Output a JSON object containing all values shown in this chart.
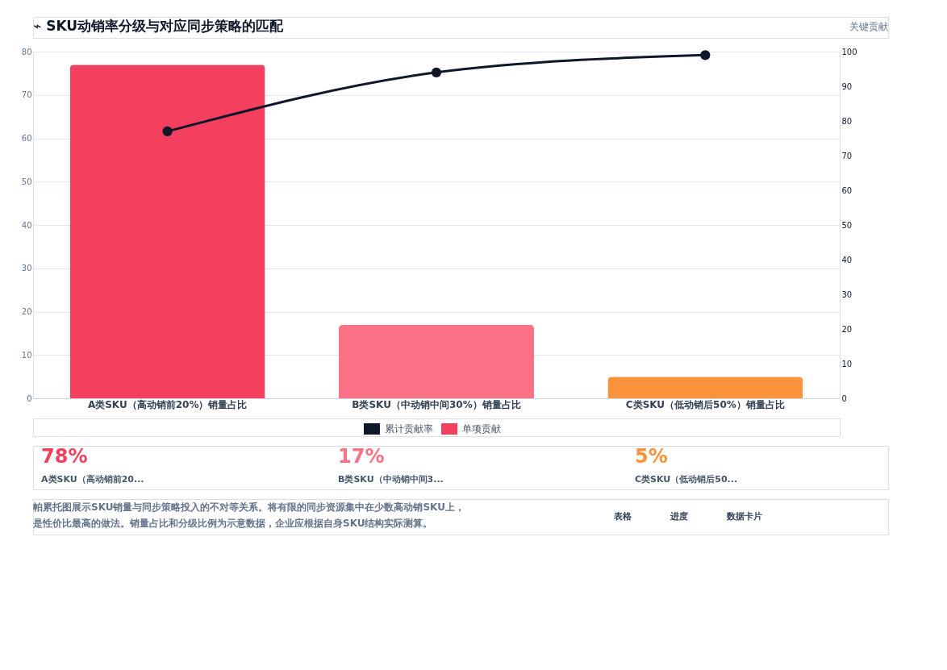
{
  "chart_data": {
    "type": "bar",
    "title": "⌁ SKU动销率分级与对应同步策略的匹配",
    "subtitle": "关键贡献",
    "categories": [
      "A类SKU（高动销前20%）销量占比",
      "B类SKU（中动销中间30%）销量占比",
      "C类SKU（低动销后50%）销量占比"
    ],
    "series": [
      {
        "name": "累计贡献率",
        "type": "line",
        "axis": "y2",
        "color": "#0f172a",
        "values": [
          77,
          94,
          99
        ]
      },
      {
        "name": "单项贡献",
        "colors": [
          "#f43f5e",
          "#fb7185",
          "#fb923c"
        ],
        "values": [
          77,
          17,
          5
        ]
      }
    ],
    "ylim": [
      0,
      80
    ],
    "yticks": [
      0,
      10,
      20,
      30,
      40,
      50,
      60,
      70,
      80
    ],
    "y2lim": [
      0,
      100
    ],
    "y2ticks": [
      0,
      10,
      20,
      30,
      40,
      50,
      60,
      70,
      80,
      90,
      100
    ],
    "grid": "y",
    "legend": "bottom",
    "marker": "circle",
    "line_style": "solid",
    "annotations": [
      "78%",
      "A类SKU（高动销前20...",
      "17%",
      "B类SKU（中动销中间3...",
      "5%",
      "C类SKU（低动销后50...",
      "帕累托图展示SKU销量与同步策略投入的不对等关系。将有限的同步资源集中在少数高动销SKU上，是性价比最高的做法。销量占比和分级比例为示意数据，企业应根据自身SKU结构实际测算。",
      "表格",
      "进度",
      "数据卡片"
    ]
  }
}
